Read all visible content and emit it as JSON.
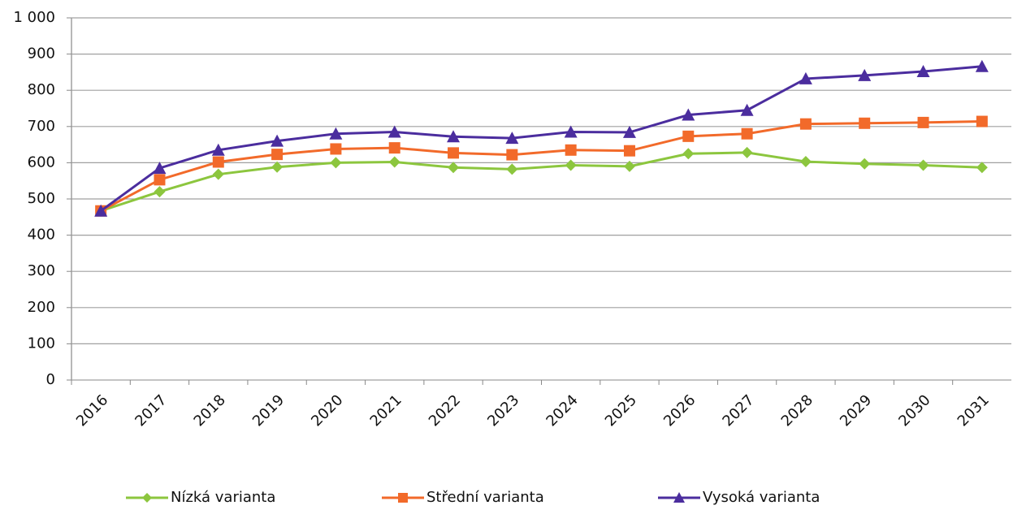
{
  "chart_data": {
    "type": "line",
    "categories": [
      "2016",
      "2017",
      "2018",
      "2019",
      "2020",
      "2021",
      "2022",
      "2023",
      "2024",
      "2025",
      "2026",
      "2027",
      "2028",
      "2029",
      "2030",
      "2031"
    ],
    "series": [
      {
        "name": "Nízká varianta",
        "color": "#8cc63e",
        "marker": "diamond",
        "values": [
          467,
          520,
          568,
          588,
          600,
          602,
          587,
          582,
          593,
          590,
          625,
          628,
          603,
          597,
          593,
          587
        ]
      },
      {
        "name": "Střední varianta",
        "color": "#f26a2a",
        "marker": "square",
        "values": [
          467,
          553,
          602,
          623,
          638,
          641,
          627,
          622,
          635,
          633,
          673,
          680,
          707,
          709,
          711,
          714
        ]
      },
      {
        "name": "Vysoká varianta",
        "color": "#4b2d9e",
        "marker": "triangle",
        "values": [
          467,
          585,
          635,
          660,
          680,
          685,
          672,
          668,
          685,
          684,
          732,
          745,
          832,
          841,
          852,
          866
        ]
      }
    ],
    "ylim": [
      0,
      1000
    ],
    "yticks": [
      0,
      100,
      200,
      300,
      400,
      500,
      600,
      700,
      800,
      900,
      {
        "value": 1000,
        "label": "1 000"
      }
    ],
    "grid": true,
    "legend": "bottom"
  }
}
